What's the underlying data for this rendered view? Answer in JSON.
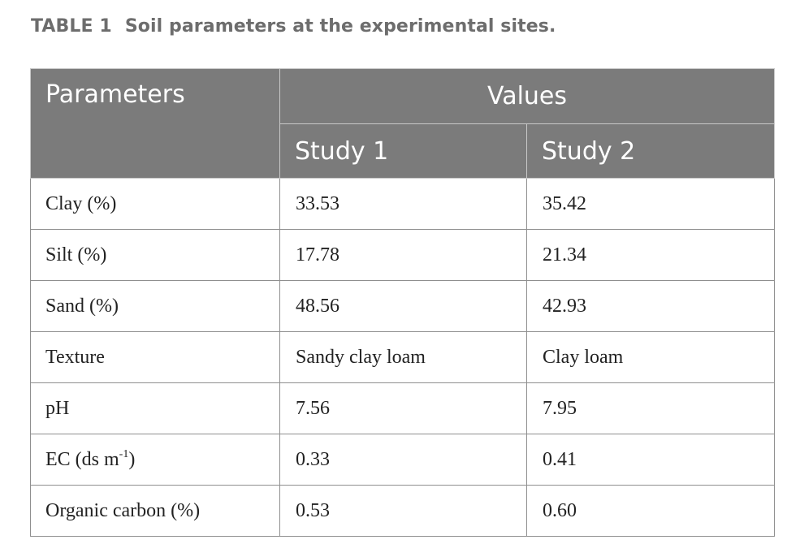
{
  "caption": {
    "label": "TABLE 1",
    "title": "Soil parameters at the experimental sites."
  },
  "table": {
    "header": {
      "parameters": "Parameters",
      "values": "Values",
      "study1": "Study 1",
      "study2": "Study 2"
    },
    "rows": [
      {
        "parameter": "Clay (%)",
        "study1": "33.53",
        "study2": "35.42"
      },
      {
        "parameter": "Silt (%)",
        "study1": "17.78",
        "study2": "21.34"
      },
      {
        "parameter": "Sand (%)",
        "study1": "48.56",
        "study2": "42.93"
      },
      {
        "parameter": "Texture",
        "study1": "Sandy clay loam",
        "study2": "Clay loam"
      },
      {
        "parameter": "pH",
        "study1": "7.56",
        "study2": "7.95"
      },
      {
        "parameter": "EC (ds m",
        "parameter_sup": "-1",
        "parameter_suffix": ")",
        "study1": "0.33",
        "study2": "0.41"
      },
      {
        "parameter": "Organic carbon (%)",
        "study1": "0.53",
        "study2": "0.60"
      }
    ]
  }
}
